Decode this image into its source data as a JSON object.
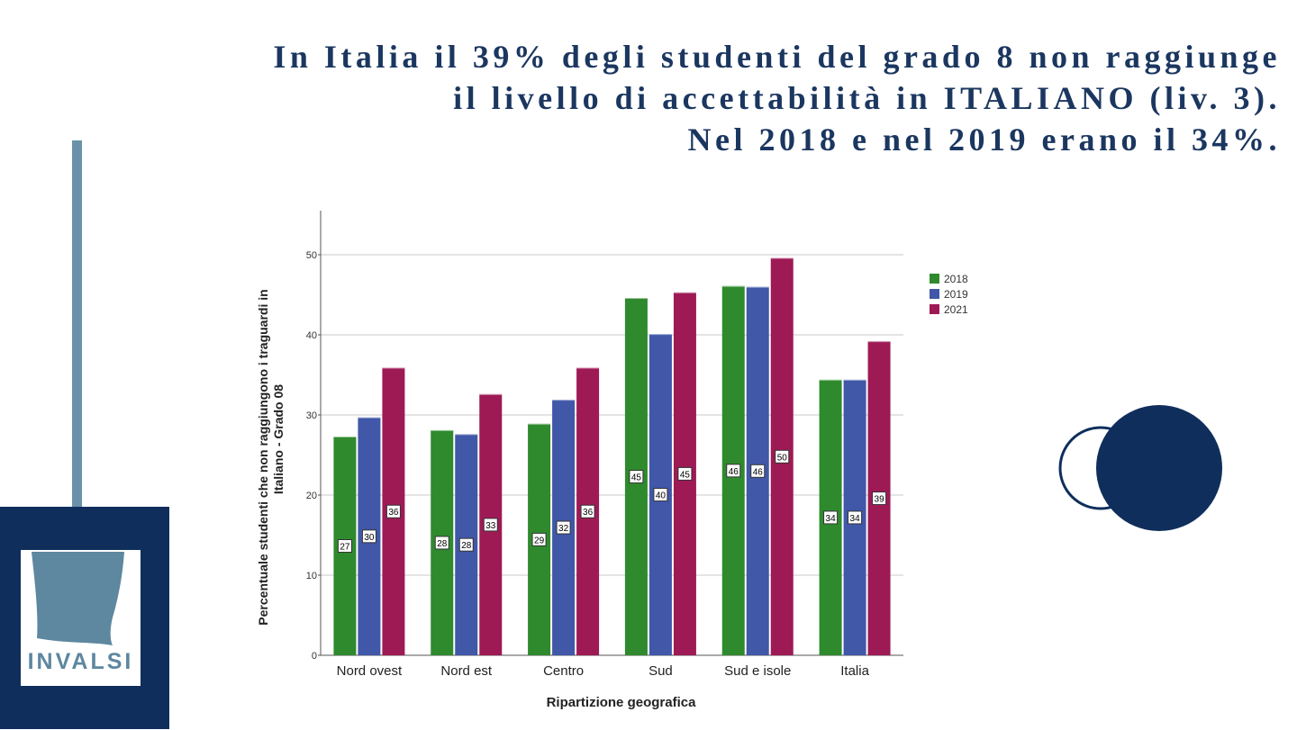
{
  "slide": {
    "title_lines": [
      "In Italia il 39% degli studenti del grado 8 non raggiunge",
      "il livello di accettabilità in ITALIANO (liv. 3).",
      "Nel 2018 e nel 2019 erano il 34%."
    ],
    "logo_text": "INVALSI"
  },
  "colors": {
    "navy": "#0f2e5c",
    "steel": "#6a91aa",
    "title": "#1b3760",
    "s2018": "#2f8a2d",
    "s2019": "#4157a8",
    "s2021": "#9e1a55"
  },
  "chart_data": {
    "type": "bar",
    "title": "",
    "xlabel": "Ripartizione geografica",
    "ylabel_lines": [
      "Percentuale studenti che non raggiungono i traguardi in",
      "Italiano - Grado 08"
    ],
    "categories": [
      "Nord ovest",
      "Nord est",
      "Centro",
      "Sud",
      "Sud e isole",
      "Italia"
    ],
    "series": [
      {
        "name": "2018",
        "values": [
          27.3,
          28.1,
          28.9,
          44.6,
          46.1,
          34.4
        ],
        "labels": [
          "27",
          "28",
          "29",
          "45",
          "46",
          "34"
        ]
      },
      {
        "name": "2019",
        "values": [
          29.7,
          27.6,
          31.9,
          40.1,
          46.0,
          34.4
        ],
        "labels": [
          "30",
          "28",
          "32",
          "40",
          "46",
          "34"
        ]
      },
      {
        "name": "2021",
        "values": [
          35.9,
          32.6,
          35.9,
          45.3,
          49.6,
          39.2
        ],
        "labels": [
          "36",
          "33",
          "36",
          "45",
          "50",
          "39"
        ]
      }
    ],
    "ylim": [
      0,
      55
    ],
    "yticks": [
      0,
      10,
      20,
      30,
      40,
      50
    ],
    "grid": true,
    "legend": "right"
  }
}
